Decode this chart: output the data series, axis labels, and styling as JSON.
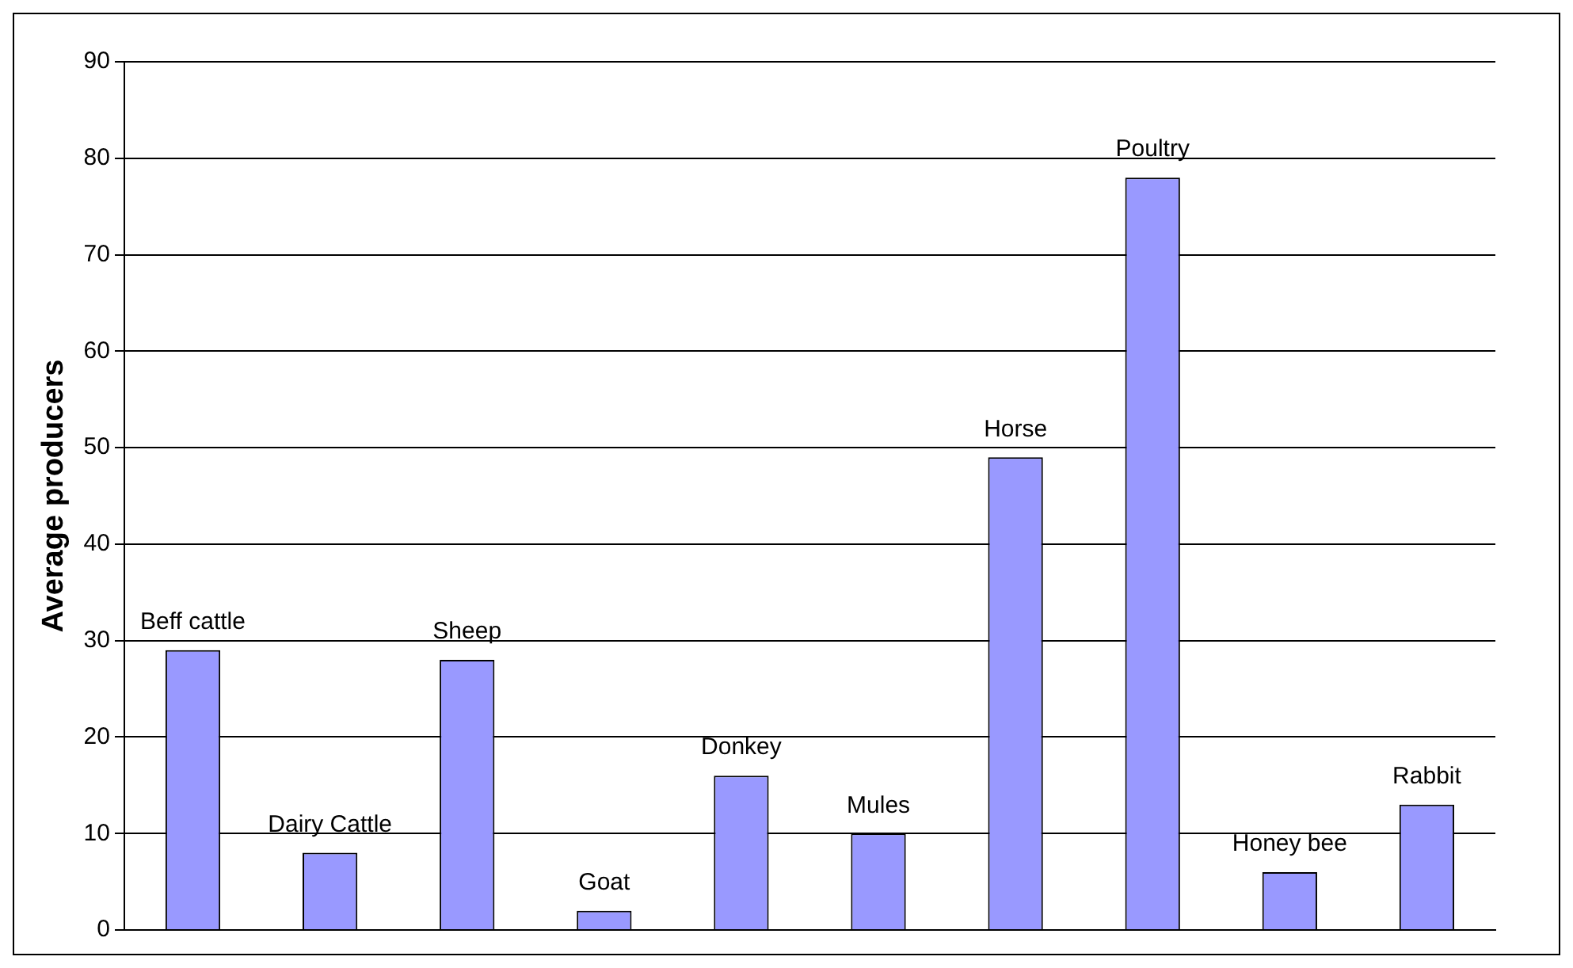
{
  "chart_data": {
    "type": "bar",
    "ylabel": "Average producers",
    "categories": [
      "Beff cattle",
      "Dairy Cattle",
      "Sheep",
      "Goat",
      "Donkey",
      "Mules",
      "Horse",
      "Poultry",
      "Honey bee",
      "Rabbit"
    ],
    "values": [
      29,
      8,
      28,
      2,
      16,
      10,
      49,
      78,
      6,
      13
    ],
    "color": "#9999ff",
    "ylim": [
      0,
      90
    ],
    "yticks": [
      0,
      10,
      20,
      30,
      40,
      50,
      60,
      70,
      80,
      90
    ],
    "grid": "y",
    "tick_labels": "y",
    "legend": false
  }
}
